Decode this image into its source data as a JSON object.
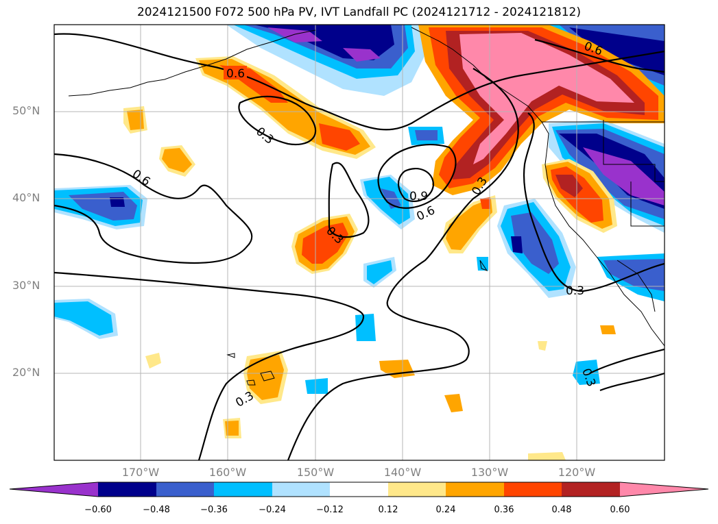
{
  "title": "2024121500 F072 500 hPa PV, IVT Landfall PC (2024121712 - 2024121812)",
  "latitude_labels": [
    "50°N",
    "40°N",
    "30°N",
    "20°N"
  ],
  "longitude_labels": [
    "170°W",
    "160°W",
    "150°W",
    "140°W",
    "130°W",
    "120°W"
  ],
  "contour_labels": [
    "0.6",
    "0.3",
    "0.6",
    "0.9",
    "0.6",
    "0.3",
    "0.3",
    "0.3",
    "0.3",
    "0.6",
    "0.3"
  ],
  "colorbar": {
    "tick_labels": [
      "−0.60",
      "−0.48",
      "−0.36",
      "−0.24",
      "−0.12",
      "0.12",
      "0.24",
      "0.36",
      "0.48",
      "0.60"
    ],
    "colors": [
      "#9932cc",
      "#00008b",
      "#3a5fcd",
      "#00bfff",
      "#b0e2ff",
      "#ffffff",
      "#ffe88a",
      "#ffa500",
      "#ff4500",
      "#b22222",
      "#ff88aa"
    ]
  }
}
